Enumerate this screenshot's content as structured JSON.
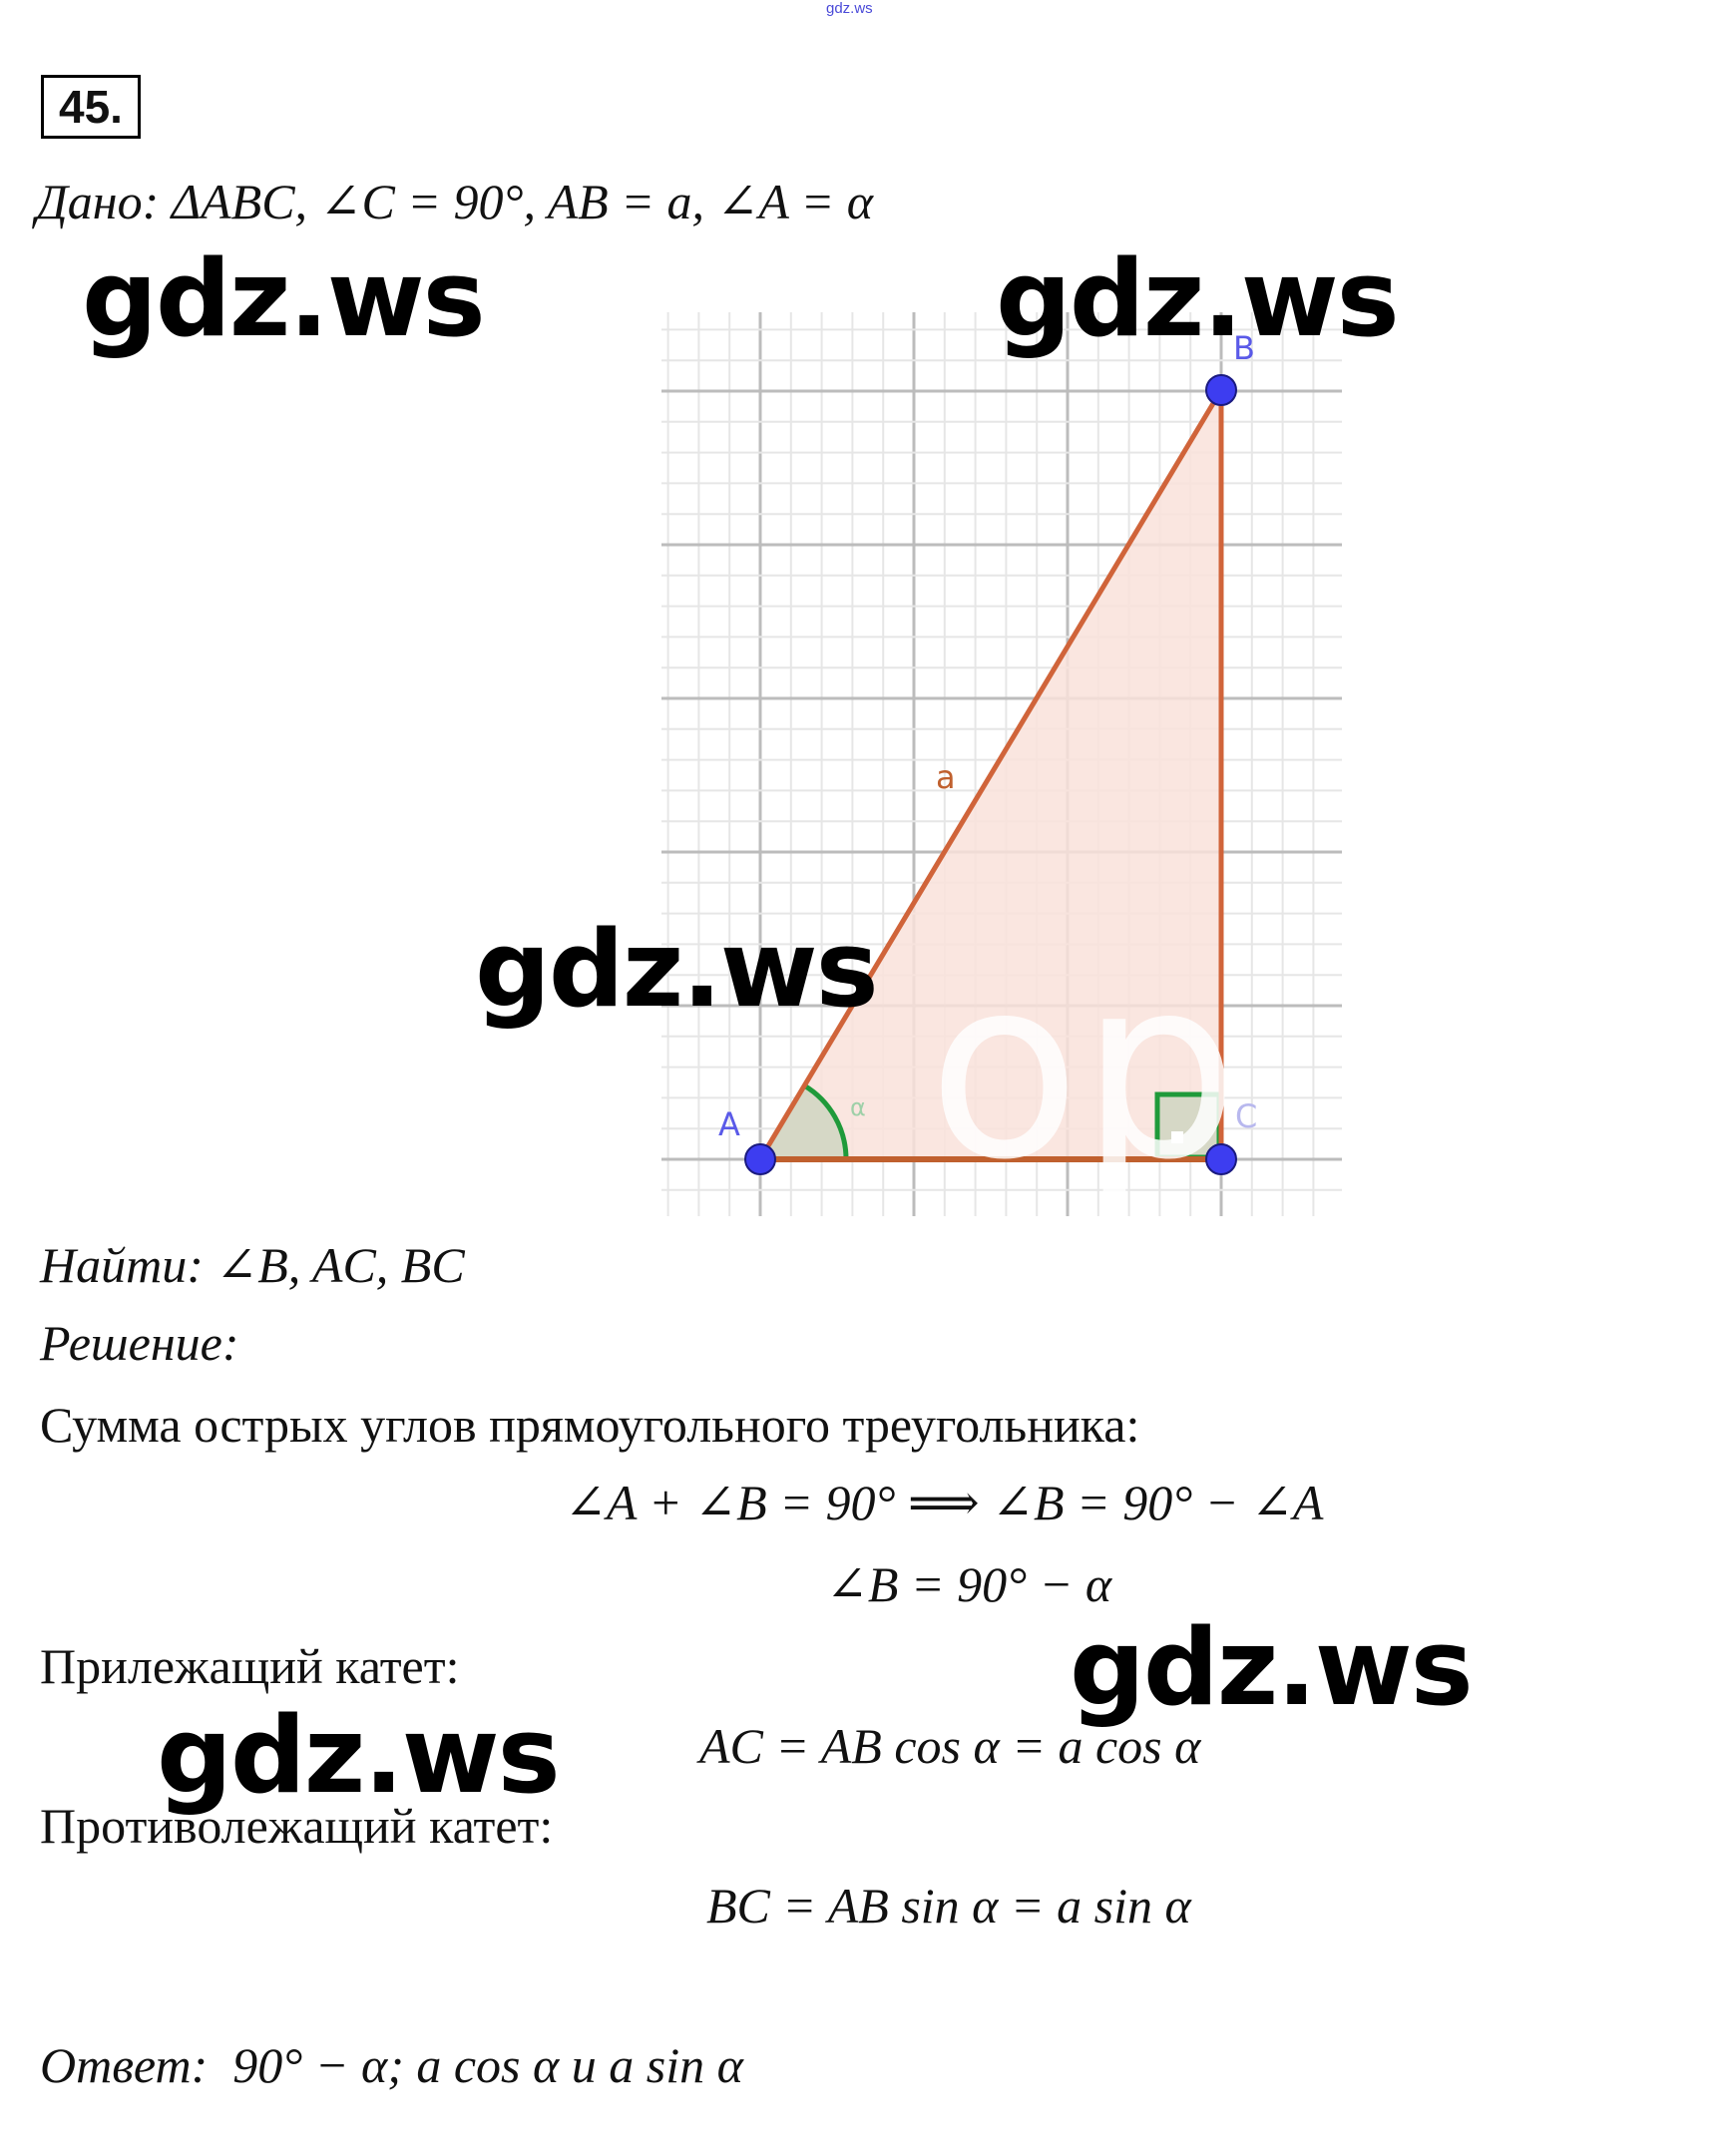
{
  "header_mark": "gdz.ws",
  "problem_number": "45.",
  "given": {
    "label": "Дано",
    "text": ": ΔABC,  ∠C = 90°,  AB = a,  ∠A = α"
  },
  "watermarks": [
    "gdz.ws",
    "gdz.ws",
    "gdz.ws",
    "gdz.ws",
    "gdz.ws"
  ],
  "faint_watermark": "op",
  "diagram": {
    "points": {
      "A": "A",
      "B": "B",
      "C": "C"
    },
    "side_label": "a",
    "angle_label": "α",
    "colors": {
      "side": "#d0643a",
      "fill": "#f9e2da",
      "point": "#3d3df0",
      "angle": "#1f9a3a",
      "grid": "#c8c8c8"
    }
  },
  "find": {
    "label": "Найти",
    "text": ": ∠B, AC, BC"
  },
  "solution_label": "Решение:",
  "sum_text": "Сумма острых углов прямоугольного треугольника:",
  "formula1": "∠A + ∠B = 90° ⟹ ∠B = 90° − ∠A",
  "formula2": "∠B = 90° − α",
  "adjacent_label": "Прилежащий катет:",
  "formula_ac": "AC = AB cos α = a cos α",
  "opposite_label": "Противолежащий катет:",
  "formula_bc": "BC = AB sin α = a sin α",
  "answer": {
    "label": "Ответ:",
    "text": "90° − α;  a cos α  и a sin α"
  }
}
